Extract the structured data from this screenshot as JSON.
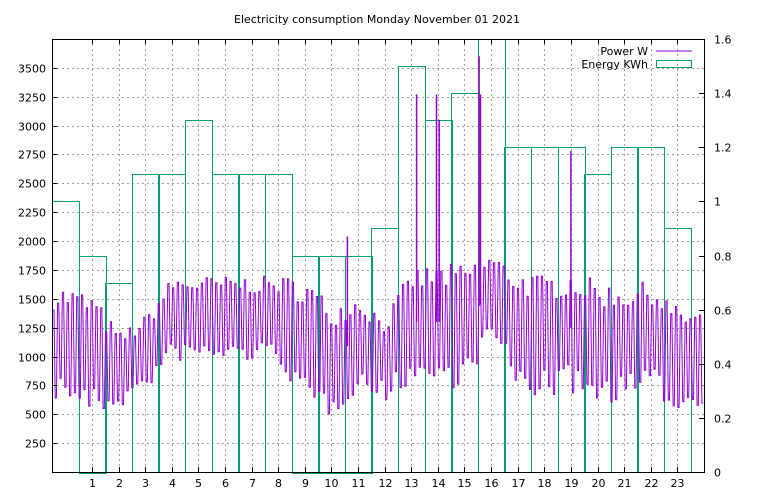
{
  "chart_data": {
    "type": "bar",
    "title": "Electricity consumption Monday November 01 2021",
    "legend_position": "top-right",
    "grid": true,
    "colors": {
      "power": "#9400d3",
      "energy": "#009e73"
    },
    "x": {
      "range": [
        -0.5,
        24
      ],
      "ticks": [
        1,
        2,
        3,
        4,
        5,
        6,
        7,
        8,
        9,
        10,
        11,
        12,
        13,
        14,
        15,
        16,
        17,
        18,
        19,
        20,
        21,
        22,
        23
      ]
    },
    "y_left": {
      "range": [
        0,
        3750
      ],
      "ticks": [
        250,
        500,
        750,
        1000,
        1250,
        1500,
        1750,
        2000,
        2250,
        2500,
        2750,
        3000,
        3250,
        3500
      ]
    },
    "y_right": {
      "range": [
        0,
        1.6
      ],
      "ticks": [
        "0",
        "0.2",
        "0.4",
        "0.6",
        "0.8",
        "1",
        "1.2",
        "1.4",
        "1.6"
      ]
    },
    "series": [
      {
        "name": "Energy KWh",
        "type": "bar",
        "axis": "right",
        "hours": [
          0,
          1,
          2,
          3,
          4,
          5,
          6,
          7,
          8,
          9,
          10,
          11,
          12,
          13,
          14,
          15,
          16,
          17,
          18,
          19,
          20,
          21,
          22,
          23
        ],
        "values": [
          1.0,
          0.8,
          0.7,
          1.1,
          1.1,
          1.3,
          1.1,
          1.1,
          1.1,
          0.8,
          0.8,
          0.8,
          0.9,
          1.5,
          1.3,
          1.4,
          1.6,
          1.2,
          1.2,
          1.2,
          1.1,
          1.2,
          1.2,
          0.9
        ]
      },
      {
        "name": "Power W",
        "type": "line",
        "axis": "left",
        "hours": [
          -0.5,
          0,
          1,
          2,
          3,
          4,
          5,
          6,
          7,
          8,
          9,
          10,
          11,
          12,
          13,
          14,
          15,
          16,
          17,
          18,
          19,
          20,
          21,
          22,
          23,
          24
        ],
        "base_levels": [
          1150,
          1150,
          1050,
          900,
          1050,
          1350,
          1350,
          1350,
          1350,
          1350,
          1150,
          1000,
          1150,
          1000,
          1300,
          1300,
          1300,
          1550,
          1250,
          1200,
          1250,
          1150,
          1150,
          1200,
          1000,
          1000
        ],
        "amplitude": [
          600,
          600,
          650,
          400,
          400,
          450,
          450,
          450,
          450,
          450,
          700,
          600,
          500,
          450,
          600,
          650,
          650,
          450,
          650,
          650,
          650,
          650,
          600,
          600,
          550,
          550
        ],
        "peaks": [
          {
            "hour": 13.2,
            "value": 3270
          },
          {
            "hour": 13.95,
            "value": 3270
          },
          {
            "hour": 14.05,
            "value": 3050
          },
          {
            "hour": 15.55,
            "value": 3600
          },
          {
            "hour": 15.6,
            "value": 3270
          },
          {
            "hour": 19.0,
            "value": 2780
          },
          {
            "hour": 10.6,
            "value": 2040
          }
        ]
      }
    ]
  }
}
